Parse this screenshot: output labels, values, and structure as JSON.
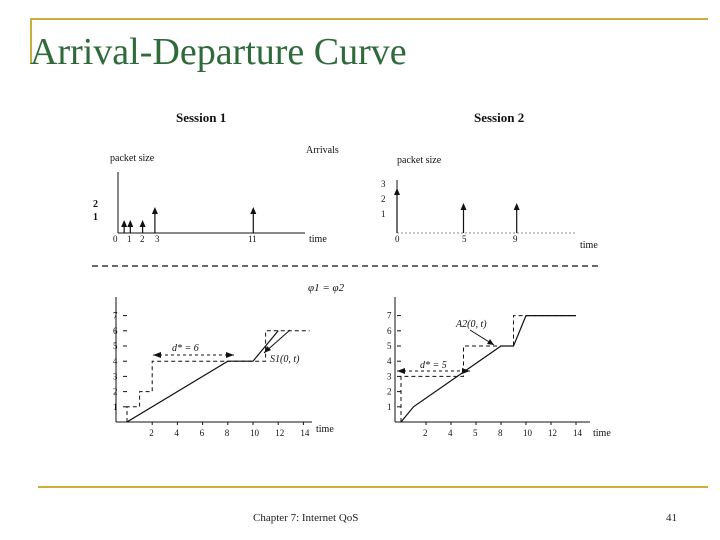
{
  "slide": {
    "title": "Arrival-Departure Curve",
    "footer_left": "Chapter 7: Internet QoS",
    "page_number": "41"
  },
  "figure": {
    "session1_title": "Session 1",
    "session2_title": "Session 2",
    "arrivals_label": "Arrivals",
    "packet_size_label": "packet size",
    "time_label": "time",
    "phi_label": "φ1 = φ2",
    "s1_arrivals": {
      "x_ticks": [
        "0",
        "1",
        "2",
        "3",
        "11"
      ],
      "y_ticks": [
        "1",
        "2"
      ],
      "arrows": [
        {
          "t": 0.5,
          "size": 1
        },
        {
          "t": 1,
          "size": 1
        },
        {
          "t": 2,
          "size": 1
        },
        {
          "t": 3,
          "size": 2
        },
        {
          "t": 11,
          "size": 2
        }
      ]
    },
    "s2_arrivals": {
      "x_ticks": [
        "0",
        "5",
        "9"
      ],
      "y_ticks": [
        "1",
        "2",
        "3"
      ],
      "arrows": [
        {
          "t": 0,
          "size": 3
        },
        {
          "t": 5,
          "size": 2
        },
        {
          "t": 9,
          "size": 2
        }
      ]
    },
    "s1_curve": {
      "x_ticks": [
        "2",
        "4",
        "6",
        "8",
        "10",
        "12",
        "14"
      ],
      "y_ticks": [
        "1",
        "2",
        "3",
        "4",
        "5",
        "6",
        "7"
      ],
      "delay_label": "d* = 6",
      "service_label": "S1(0, t)",
      "arrival_steps": [
        [
          0,
          0
        ],
        [
          0,
          1
        ],
        [
          1,
          1
        ],
        [
          1,
          2
        ],
        [
          2,
          2
        ],
        [
          2,
          4
        ],
        [
          11,
          4
        ],
        [
          11,
          6
        ],
        [
          14.5,
          6
        ]
      ],
      "service": [
        [
          0,
          0
        ],
        [
          8,
          4
        ],
        [
          10,
          4
        ],
        [
          12,
          6
        ]
      ]
    },
    "s2_curve": {
      "x_ticks": [
        "2",
        "4",
        "5",
        "8",
        "10",
        "12",
        "14"
      ],
      "y_ticks": [
        "1",
        "2",
        "3",
        "4",
        "5",
        "6",
        "7"
      ],
      "delay_label": "d* = 5",
      "arrival_label": "A2(0, t)",
      "arrival_steps": [
        [
          0,
          0
        ],
        [
          0,
          3
        ],
        [
          5,
          3
        ],
        [
          5,
          5
        ],
        [
          9,
          5
        ],
        [
          9,
          7
        ],
        [
          14,
          7
        ]
      ],
      "service": [
        [
          0,
          0
        ],
        [
          1,
          1
        ],
        [
          8,
          5
        ],
        [
          9,
          5
        ],
        [
          10,
          7
        ],
        [
          14,
          7
        ]
      ]
    }
  }
}
